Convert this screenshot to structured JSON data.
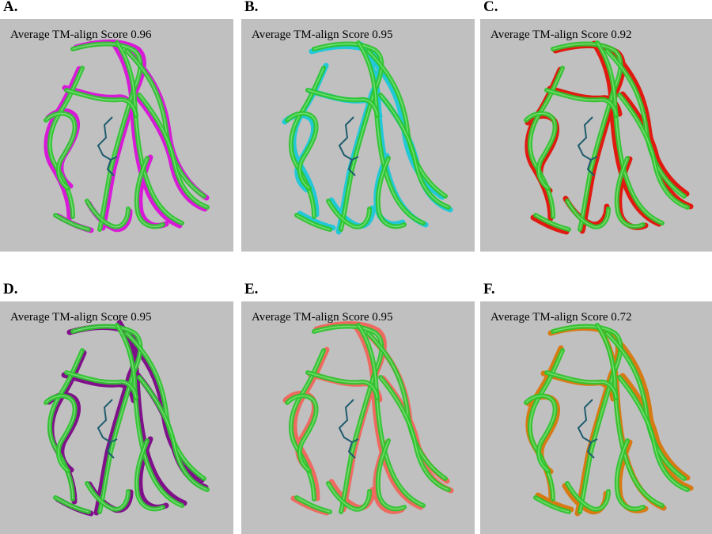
{
  "panels": [
    {
      "letter": "A.",
      "score_text": "Average TM-align Score 0.96",
      "colors": {
        "reference": "#2ec42e",
        "model": "#d81ad8"
      }
    },
    {
      "letter": "B.",
      "score_text": "Average TM-align Score 0.95",
      "colors": {
        "reference": "#2ec42e",
        "model": "#22c8d8"
      }
    },
    {
      "letter": "C.",
      "score_text": "Average TM-align Score 0.92",
      "colors": {
        "reference": "#2ec42e",
        "model": "#e01a10"
      }
    },
    {
      "letter": "D.",
      "score_text": "Average TM-align Score 0.95",
      "colors": {
        "reference": "#2ec42e",
        "model": "#80108a"
      }
    },
    {
      "letter": "E.",
      "score_text": "Average TM-align Score 0.95",
      "colors": {
        "reference": "#2ec42e",
        "model": "#ee6a60"
      }
    },
    {
      "letter": "F.",
      "score_text": "Average TM-align Score 0.72",
      "colors": {
        "reference": "#2ec42e",
        "model": "#d87a14"
      }
    }
  ],
  "ligand_color": "#1f5c6e",
  "background_color": "#c0c0c0"
}
